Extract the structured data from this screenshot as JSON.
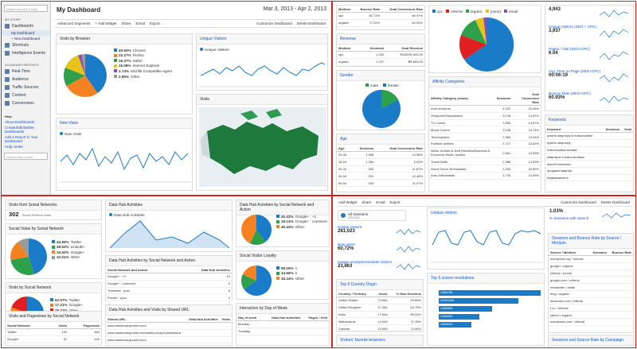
{
  "q1": {
    "search_placeholder": "Search reports & help",
    "sidebar_sections": [
      "MY STUFF",
      "STANDARD REPORTS"
    ],
    "my_stuff": [
      "Dashboards",
      "Shortcuts",
      "Intelligence Events"
    ],
    "dash_sub": [
      "My Dashboard",
      "+ New Dashboard"
    ],
    "standard": [
      "Real-Time",
      "Audience",
      "Traffic Sources",
      "Content",
      "Conversions"
    ],
    "help_title": "Help",
    "help_links": [
      "About Dashboards",
      "Create/Edit/Delete Dashboards",
      "Add a Report to Your Dashboard",
      "Help center"
    ],
    "help_search_placeholder": "Search help center",
    "title": "My Dashboard",
    "date_range": "Mar 3, 2013 - Apr 2, 2013",
    "toolbar": [
      "Advanced Segments",
      "+ Add Widget",
      "Share",
      "Email",
      "Export"
    ],
    "toolbar_right": [
      "Customize Dashboard",
      "Delete Dashboard"
    ],
    "browser_widget_title": "Visits by Browser",
    "browser_legend": [
      {
        "value": "40.60%",
        "label": "Chrome",
        "color": "#1a7bc9"
      },
      {
        "value": "22.27%",
        "label": "Firefox",
        "color": "#f58220"
      },
      {
        "value": "16.37%",
        "label": "Safari",
        "color": "#2fa04a"
      },
      {
        "value": "15.08%",
        "label": "Internet Explorer",
        "color": "#e8c41a"
      },
      {
        "value": "2.74%",
        "label": "Mozilla Compatible Agent",
        "color": "#8a51b3"
      },
      {
        "value": "2.85%",
        "label": "Other",
        "color": "#999999"
      }
    ],
    "uv_title": "Unique Visitors",
    "uv_series": "Unique Visitors",
    "nv_title": "New Visits",
    "nv_series": "New Visits",
    "visits_map_title": "Visits"
  },
  "q2": {
    "table1_headers": [
      "Medium",
      "Bounce Rate",
      "Goal Conversion Rate"
    ],
    "table1_rows": [
      [
        "cpc",
        "60.71%",
        "80.97%"
      ],
      [
        "organic",
        "77.22%",
        "60.00%"
      ]
    ],
    "revenue_title": "Revenue",
    "revenue_headers": [
      "Medium",
      "Sessions",
      "Goal Revenue"
    ],
    "revenue_rows": [
      [
        "cpc",
        "1,200",
        "RUB235,500.00"
      ],
      [
        "organic",
        "1,237",
        "₽5,600.00"
      ]
    ],
    "gender_title": "Gender",
    "gender_legend": [
      {
        "label": "male",
        "color": "#2fa04a"
      },
      {
        "label": "female",
        "color": "#1a7bc9"
      }
    ],
    "age_title": "Age",
    "age_headers": [
      "Age",
      "Sessions",
      "Goal Conversion Rate"
    ],
    "age_rows": [
      [
        "25-34",
        "1,006",
        "14.96%"
      ],
      [
        "18-24",
        "1,284",
        "5.00%"
      ],
      [
        "35-44",
        "333",
        "11.87%"
      ],
      [
        "45-54",
        "201",
        "10.46%"
      ],
      [
        "55-64",
        "153",
        "11.27%"
      ]
    ],
    "pie_legend": [
      {
        "label": "cpc",
        "color": "#1a7bc9"
      },
      {
        "label": "referral",
        "color": "#e02020"
      },
      {
        "label": "organic",
        "color": "#2fa04a"
      },
      {
        "label": "(none)",
        "color": "#e8c41a"
      },
      {
        "label": "email",
        "color": "#8a51b3"
      }
    ],
    "affinity_title": "Affinity Categories",
    "affinity_headers": [
      "Affinity Category (reach)",
      "Sessions",
      "Goal Conversion Rate"
    ],
    "affinity_rows": [
      [
        "Avid Investors",
        "4,102",
        "15.46%"
      ],
      [
        "Shoppers/Shopaholics",
        "3,715",
        "14.87%"
      ],
      [
        "TV Lovers",
        "3,505",
        "14.87%"
      ],
      [
        "Movie Lovers",
        "3,136",
        "14.74%"
      ],
      [
        "Technophiles",
        "2,960",
        "13.04%"
      ],
      [
        "Political Junkies",
        "2,717",
        "15.82%"
      ],
      [
        "News Junkies & Avid Readers/Business & Economic News Junkies",
        "2,661",
        "14.39%"
      ],
      [
        "Travel Buffs",
        "2,388",
        "13.93%"
      ],
      [
        "Home Decor Enthusiasts",
        "2,254",
        "16.82%"
      ],
      [
        "Auto Enthusiasts",
        "1,776",
        "13.49%"
      ]
    ],
    "metrics": [
      {
        "label": "",
        "value": "4,943"
      },
      {
        "label": "Unique Visitors (SEO + CPC)",
        "value": "3,937"
      },
      {
        "label": "Pages / Visit (SEO+CPC)",
        "value": "6.04"
      },
      {
        "label": "Avg. Time on Page (SEO+CPC)",
        "value": "00:06:19"
      },
      {
        "label": "Bounce Rate (SEO+CPC)",
        "value": "60.93%"
      }
    ],
    "keywords_title": "Keywords",
    "keywords_headers": [
      "Keyword",
      "Sessions",
      "Goal"
    ],
    "keywords_rows": [
      [
        "купить квартиру в новостройке",
        "",
        ""
      ],
      [
        "купить квартиру",
        "",
        ""
      ],
      [
        "новостройки москва",
        "",
        ""
      ],
      [
        "квартиры в новостройках",
        "",
        ""
      ],
      [
        "жилой комплекс",
        "",
        ""
      ],
      [
        "продажа квартир",
        "",
        ""
      ],
      [
        "недвижимость",
        "",
        ""
      ]
    ]
  },
  "q3": {
    "social_title": "Visits from Social Networks",
    "social_value": "302",
    "social_sub": "Social Referral Visits",
    "social_value_title": "Social Value by Social Network",
    "social_value_legend": [
      {
        "value": "44.96%",
        "label": "Twitter",
        "color": "#1a7bc9"
      },
      {
        "value": "28.53%",
        "label": "LinkedIn",
        "color": "#2fa04a"
      },
      {
        "value": "16.50%",
        "label": "Google+",
        "color": "#f58220"
      },
      {
        "value": "10.01%",
        "label": "Other",
        "color": "#999999"
      }
    ],
    "visits_social_title": "Visits by Social Network",
    "visits_social_legend": [
      {
        "value": "62.57%",
        "label": "Twitter",
        "color": "#1a7bc9"
      },
      {
        "value": "17.21%",
        "label": "Google+",
        "color": "#f58220"
      },
      {
        "value": "19.22%",
        "label": "Other",
        "color": "#e02020"
      }
    ],
    "visits_pv_title": "Visits and Pageviews by Social Network",
    "visits_pv_headers": [
      "Social Network",
      "Visits",
      "Pageviews"
    ],
    "visits_pv_rows": [
      [
        "Twitter",
        "190",
        "469"
      ],
      [
        "Google+",
        "52",
        "202"
      ]
    ],
    "dha_title": "Data Hub Activities",
    "dha_series": "Data Hub Activities",
    "dha_net_title": "Data Hub Activities by Social Network and Action",
    "dha_net_headers": [
      "Social Network and Action",
      "Data Hub Activities"
    ],
    "dha_net_rows": [
      [
        "Google+ : +1",
        "19"
      ],
      [
        "Google+ : comment",
        "9"
      ],
      [
        "Tracklists : post",
        "6"
      ],
      [
        "Pocket : sync",
        "4"
      ],
      [
        "Google+ : share",
        "2"
      ]
    ],
    "dha_url_title": "Data Hub Activities and Visits by Shared URL",
    "dha_url_headers": [
      "Shared URL",
      "Data Hub Activities",
      "Visits"
    ],
    "dha_url_rows": [
      [
        "www.dashboardjunkie.com/",
        "",
        ""
      ],
      [
        "www.dashboardjunkie.com/sales-cockpit-dashboard",
        "",
        ""
      ],
      [
        "www.dashboardjunkie.com/",
        "",
        ""
      ]
    ],
    "dha_pie_title": "Data Hub Activities by Social Network and Action",
    "dha_pie_legend": [
      {
        "value": "40.42%",
        "label": "Google+ : +1",
        "color": "#1a7bc9"
      },
      {
        "value": "19.14%",
        "label": "Google+ : comment",
        "color": "#2fa04a"
      },
      {
        "value": "40.44%",
        "label": "Other",
        "color": "#f58220"
      }
    ],
    "loyalty_title": "Social Visitor Loyalty",
    "loyalty_legend": [
      {
        "value": "69.20%",
        "label": "1",
        "color": "#1a7bc9"
      },
      {
        "value": "14.56%",
        "label": "2",
        "color": "#2fa04a"
      },
      {
        "value": "16.24%",
        "label": "Other",
        "color": "#f58220"
      }
    ],
    "dow_title": "Interaction by Day of Week",
    "dow_headers": [
      "Day of week",
      "Data Hub Activities",
      "Pages / Visit"
    ],
    "dow_rows": [
      [
        "Monday",
        "",
        ""
      ],
      [
        "Tuesday",
        "",
        ""
      ]
    ]
  },
  "q4": {
    "toolbar": [
      "Add Widget",
      "Share",
      "Email",
      "Export"
    ],
    "toolbar_right": [
      "Customize Dashboard",
      "Delete Dashboard"
    ],
    "segment_label": "All Sessions",
    "segment_sub": "100.00%",
    "add_segment": "+ Add Segment",
    "unique_visitors_label": "Unique visitors",
    "unique_visitors_value": "281,023",
    "new_users_label": "New users",
    "new_users_value": "60.72%",
    "unique_smart_label": "Unique smartphone/tablet visitors",
    "unique_smart_value": "23,863",
    "top_countries_title": "Top 5 Country Origin",
    "countries_headers": [
      "Country / Territory",
      "Users",
      "% New Sessions"
    ],
    "countries_rows": [
      [
        "United States",
        "79,064",
        "29.89%"
      ],
      [
        "United Kingdom",
        "27,282",
        "63.75%"
      ],
      [
        "India",
        "17,846",
        "85.02%"
      ],
      [
        "Netherlands",
        "14,049",
        "71.15%"
      ],
      [
        "Canada",
        "13,069",
        "73.44%"
      ]
    ],
    "visitors_traffic_title": "Visitors' favorite browsers",
    "uv_chart_title": "Unique visitors",
    "screen_title": "Top 5 screen resolutions",
    "screen_bars": [
      {
        "label": "1366x768",
        "value": 100
      },
      {
        "label": "1920x1080",
        "value": 78
      },
      {
        "label": "1280x800",
        "value": 52
      },
      {
        "label": "1440x900",
        "value": 40
      },
      {
        "label": "1600x900",
        "value": 32
      }
    ],
    "sessions_search_value": "1.03%",
    "sessions_search_label": "% Sessions with Search",
    "source_title": "Sessions and Bounce Rate by Source / Medium",
    "source_headers": [
      "Source / Medium",
      "Sessions",
      "Bounce Rate"
    ],
    "source_rows": [
      [
        "wordpress.org / referral",
        "",
        ""
      ],
      [
        "google / organic",
        "",
        ""
      ],
      [
        "(direct) / (none)",
        "",
        ""
      ],
      [
        "google.com / referral",
        "",
        ""
      ],
      [
        "newsletter / email",
        "",
        ""
      ],
      [
        "bing / organic",
        "",
        ""
      ],
      [
        "facebook.com / referral",
        "",
        ""
      ],
      [
        "t.co / referral",
        "",
        ""
      ],
      [
        "yahoo / organic",
        "",
        ""
      ],
      [
        "wordpress.com / referral",
        "",
        ""
      ]
    ],
    "campaign_title": "Sessions and Source Rate by Campaign"
  }
}
